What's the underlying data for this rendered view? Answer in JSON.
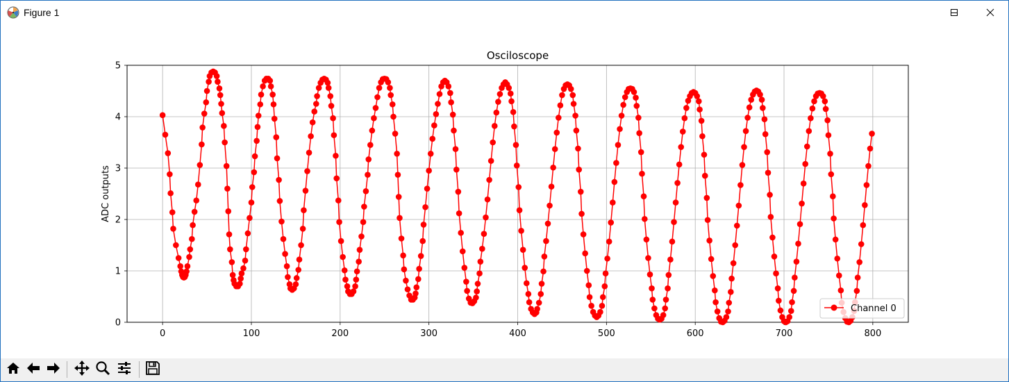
{
  "window": {
    "title": "Figure 1",
    "controls": [
      "minimize-icon",
      "maximize-icon",
      "close-icon"
    ]
  },
  "toolbar": {
    "buttons": [
      "home-icon",
      "back-icon",
      "forward-icon",
      "pan-icon",
      "zoom-icon",
      "configure-subplots-icon",
      "save-icon"
    ]
  },
  "chart_data": {
    "type": "line",
    "title": "Osciloscope",
    "xlabel": "",
    "ylabel": "ADC outputs",
    "xlim": [
      -40,
      840
    ],
    "ylim": [
      0,
      5
    ],
    "xticks": [
      0,
      100,
      200,
      300,
      400,
      500,
      600,
      700,
      800
    ],
    "yticks": [
      0,
      1,
      2,
      3,
      4,
      5
    ],
    "grid": true,
    "legend_position": "lower-right",
    "series_color": "#ff0000",
    "marker": "circle",
    "series": [
      {
        "name": "Channel 0",
        "points": "0,4.03;3,3.65;6,3.29;8,2.88;9,2.51;11,2.14;12,1.82;15,1.50;18,1.25;20,1.09;21,0.99;22,0.92;23,0.88;24,0.87;25,0.88;26,0.92;27,0.99;28,1.09;30,1.27;31,1.42;33,1.62;34,1.89;36,2.15;38,2.37;40,2.68;42,3.06;44,3.46;45,3.79;47,4.06;49,4.28;50,4.50;52,4.68;53,4.79;55,4.86;57,4.88;59,4.86;61,4.79;62,4.68;64,4.55;65,4.42;66,4.25;67,4.07;69,3.82;70,3.50;72,3.04;73,2.60;74,2.16;75,1.71;76,1.42;78,1.17;79,0.92;80,0.82;81,0.75;83,0.70;85,0.70;87,0.75;88,0.85;89,0.95;91,1.05;93,1.20;94,1.42;96,1.73;98,2.03;100,2.33;101,2.63;103,2.92;104,3.23;106,3.53;107,3.80;108,4.02;110,4.24;111,4.43;113,4.59;115,4.70;117,4.74;119,4.74;121,4.70;122,4.59;124,4.43;125,4.24;126,3.96;128,3.60;129,3.19;131,2.77;132,2.36;134,1.96;136,1.62;138,1.33;140,1.09;141,0.88;143,0.74;144,0.66;146,0.63;148,0.66;150,0.74;151,0.86;153,1.02;154,1.22;156,1.50;158,1.82;159,2.18;161,2.56;163,2.94;165,3.30;167,3.62;169,3.89;171,4.10;173,4.25;174,4.40;176,4.56;178,4.66;180,4.72;182,4.74;184,4.72;186,4.66;187,4.56;189,4.40;190,4.21;192,3.97;193,3.64;195,3.24;196,2.80;198,2.37;199,1.95;201,1.58;203,1.27;205,1.01;206,0.83;208,0.70;209,0.60;211,0.55;213,0.55;215,0.60;217,0.70;218,0.83;219,0.99;221,1.18;222,1.41;224,1.67;226,1.95;227,2.25;229,2.55;231,2.87;232,3.17;234,3.45;236,3.73;238,3.97;240,4.17;242,4.38;244,4.56;246,4.67;248,4.73;250,4.74;252,4.73;254,4.67;256,4.56;257,4.42;259,4.24;260,4.00;262,3.67;264,3.28;265,2.87;266,2.44;267,2.03;269,1.63;271,1.30;272,1.03;274,0.81;276,0.64;278,0.52;280,0.44;282,0.44;284,0.48;285,0.56;286,0.68;288,0.84;289,1.04;291,1.29;293,1.58;294,1.90;296,2.24;298,2.60;300,2.95;302,3.28;304,3.57;306,3.83;308,4.05;310,4.25;312,4.44;314,4.59;316,4.67;318,4.70;320,4.67;322,4.59;324,4.46;325,4.28;327,4.04;328,3.73;330,3.37;331,2.97;333,2.54;334,2.12;336,1.74;338,1.38;340,1.06;342,0.79;343,0.61;345,0.46;347,0.38;349,0.37;351,0.41;353,0.48;354,0.60;355,0.75;357,0.95;358,1.18;360,1.43;362,1.72;364,2.04;366,2.39;368,2.77;370,3.14;372,3.50;374,3.82;376,4.08;378,4.29;380,4.44;382,4.56;384,4.63;386,4.67;388,4.63;390,4.56;392,4.45;393,4.30;395,4.09;396,3.81;398,3.45;399,3.05;401,2.63;402,2.18;404,1.78;406,1.41;408,1.06;410,0.76;412,0.55;413,0.39;415,0.26;417,0.19;419,0.16;421,0.19;422,0.26;424,0.38;426,0.55;427,0.75;429,0.99;430,1.28;432,1.58;434,1.92;436,2.27;438,2.64;440,3.01;442,3.37;444,3.69;446,3.98;448,4.22;450,4.42;452,4.54;454,4.61;456,4.63;458,4.61;460,4.54;462,4.42;463,4.25;465,4.02;466,3.73;468,3.38;469,2.97;471,2.54;472,2.11;474,1.71;476,1.34;478,1.00;480,0.72;481,0.49;483,0.32;485,0.20;487,0.13;489,0.10;491,0.13;493,0.20;495,0.32;496,0.49;498,0.70;499,0.95;501,1.24;503,1.57;505,1.94;507,2.33;509,2.73;511,3.10;513,3.45;515,3.76;517,4.02;519,4.23;521,4.38;523,4.48;525,4.54;527,4.55;529,4.54;531,4.48;533,4.37;534,4.21;536,3.98;537,3.68;539,3.31;540,2.89;542,2.45;543,2.01;545,1.61;547,1.25;549,0.93;551,0.66;552,0.44;554,0.27;556,0.14;558,0.07;560,0.05;562,0.07;564,0.14;566,0.27;567,0.44;569,0.66;570,0.92;572,1.22;574,1.57;576,1.95;578,2.33;580,2.71;582,3.07;584,3.41;586,3.71;588,3.97;590,4.17;592,4.31;594,4.40;596,4.46;598,4.48;600,4.46;602,4.40;604,4.30;605,4.14;607,3.92;608,3.62;610,3.26;611,2.85;613,2.42;614,1.99;616,1.59;618,1.23;620,0.90;622,0.62;623,0.39;625,0.21;627,0.08;629,0.01;631,0.00;633,0.03;635,0.10;637,0.21;638,0.38;640,0.59;641,0.85;643,1.15;645,1.50;647,1.88;649,2.27;651,2.67;653,3.06;655,3.41;657,3.72;659,3.98;661,4.18;663,4.33;665,4.43;667,4.49;669,4.51;671,4.49;673,4.43;675,4.33;676,4.17;678,3.95;679,3.66;681,3.31;682,2.91;684,2.48;685,2.05;687,1.65;689,1.28;691,0.95;693,0.66;694,0.42;696,0.23;698,0.10;700,0.02;702,0.00;704,0.02;706,0.10;708,0.22;709,0.39;711,0.61;712,0.87;714,1.18;716,1.53;718,1.91;720,2.31;722,2.70;724,3.08;726,3.42;728,3.72;730,3.97;732,4.16;734,4.30;736,4.40;738,4.45;740,4.46;742,4.45;744,4.40;746,4.30;747,4.15;749,3.93;750,3.64;752,3.28;753,2.88;755,2.45;756,2.02;758,1.61;760,1.24;762,0.91;764,0.62;765,0.38;767,0.20;769,0.08;771,0.01;773,0.00;775,0.03;777,0.10;779,0.22;780,0.39;782,0.61;783,0.87;785,1.17;787,1.52;789,1.89;791,2.28;793,2.67;795,3.04;797,3.38;799,3.67"
      }
    ]
  }
}
